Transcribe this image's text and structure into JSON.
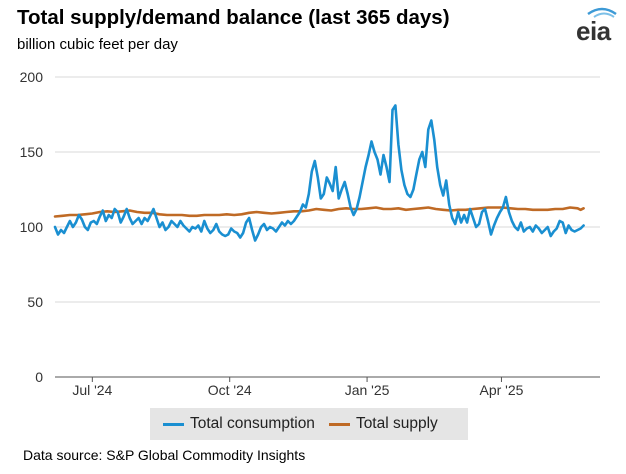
{
  "title": "Total supply/demand balance (last 365 days)",
  "subtitle": "billion cubic feet per day",
  "logo": {
    "text": "eia"
  },
  "source": "Data source: S&P Global Commodity Insights",
  "colors": {
    "consumption": "#1a8fd1",
    "supply": "#bf6a25",
    "grid": "#d9d9d9",
    "axis": "#555555",
    "legend_bg": "#e5e5e5"
  },
  "chart_data": {
    "type": "line",
    "title": "Total supply/demand balance (last 365 days)",
    "ylabel": "billion cubic feet per day",
    "xlabel": "",
    "ylim": [
      0,
      200
    ],
    "yticks": [
      0,
      50,
      100,
      150,
      200
    ],
    "xlim_days": [
      0,
      365
    ],
    "xticks": [
      {
        "label": "Jul '24",
        "day": 25
      },
      {
        "label": "Oct '24",
        "day": 117
      },
      {
        "label": "Jan '25",
        "day": 209
      },
      {
        "label": "Apr '25",
        "day": 299
      }
    ],
    "grid": true,
    "legend_position": "bottom",
    "series": [
      {
        "name": "Total consumption",
        "color": "#1a8fd1",
        "points": [
          [
            0,
            100
          ],
          [
            2,
            95
          ],
          [
            4,
            98
          ],
          [
            6,
            96
          ],
          [
            8,
            100
          ],
          [
            10,
            104
          ],
          [
            12,
            100
          ],
          [
            14,
            103
          ],
          [
            16,
            108
          ],
          [
            18,
            105
          ],
          [
            20,
            100
          ],
          [
            22,
            98
          ],
          [
            24,
            103
          ],
          [
            26,
            104
          ],
          [
            28,
            102
          ],
          [
            30,
            107
          ],
          [
            32,
            111
          ],
          [
            34,
            104
          ],
          [
            36,
            108
          ],
          [
            38,
            106
          ],
          [
            40,
            112
          ],
          [
            42,
            110
          ],
          [
            44,
            103
          ],
          [
            46,
            107
          ],
          [
            48,
            112
          ],
          [
            50,
            106
          ],
          [
            52,
            102
          ],
          [
            54,
            104
          ],
          [
            56,
            106
          ],
          [
            58,
            102
          ],
          [
            60,
            106
          ],
          [
            62,
            104
          ],
          [
            64,
            108
          ],
          [
            66,
            112
          ],
          [
            68,
            106
          ],
          [
            70,
            100
          ],
          [
            72,
            103
          ],
          [
            74,
            98
          ],
          [
            76,
            100
          ],
          [
            78,
            104
          ],
          [
            80,
            102
          ],
          [
            82,
            100
          ],
          [
            84,
            104
          ],
          [
            86,
            101
          ],
          [
            88,
            99
          ],
          [
            90,
            97
          ],
          [
            92,
            100
          ],
          [
            94,
            99
          ],
          [
            96,
            101
          ],
          [
            98,
            97
          ],
          [
            100,
            104
          ],
          [
            102,
            99
          ],
          [
            104,
            96
          ],
          [
            106,
            98
          ],
          [
            108,
            102
          ],
          [
            110,
            97
          ],
          [
            112,
            95
          ],
          [
            114,
            94
          ],
          [
            116,
            95
          ],
          [
            118,
            99
          ],
          [
            120,
            97
          ],
          [
            122,
            96
          ],
          [
            124,
            93
          ],
          [
            126,
            96
          ],
          [
            128,
            103
          ],
          [
            130,
            106
          ],
          [
            132,
            98
          ],
          [
            134,
            91
          ],
          [
            136,
            95
          ],
          [
            138,
            100
          ],
          [
            140,
            102
          ],
          [
            142,
            98
          ],
          [
            144,
            100
          ],
          [
            146,
            99
          ],
          [
            148,
            97
          ],
          [
            150,
            100
          ],
          [
            152,
            103
          ],
          [
            154,
            101
          ],
          [
            156,
            104
          ],
          [
            158,
            102
          ],
          [
            160,
            104
          ],
          [
            162,
            107
          ],
          [
            164,
            110
          ],
          [
            166,
            115
          ],
          [
            168,
            113
          ],
          [
            170,
            122
          ],
          [
            172,
            137
          ],
          [
            174,
            144
          ],
          [
            176,
            133
          ],
          [
            178,
            119
          ],
          [
            180,
            122
          ],
          [
            182,
            133
          ],
          [
            184,
            129
          ],
          [
            186,
            124
          ],
          [
            188,
            140
          ],
          [
            190,
            119
          ],
          [
            192,
            125
          ],
          [
            194,
            130
          ],
          [
            196,
            122
          ],
          [
            198,
            113
          ],
          [
            200,
            108
          ],
          [
            202,
            112
          ],
          [
            204,
            120
          ],
          [
            206,
            130
          ],
          [
            208,
            140
          ],
          [
            210,
            148
          ],
          [
            212,
            157
          ],
          [
            214,
            150
          ],
          [
            216,
            145
          ],
          [
            218,
            135
          ],
          [
            220,
            148
          ],
          [
            222,
            140
          ],
          [
            224,
            130
          ],
          [
            226,
            178
          ],
          [
            228,
            181
          ],
          [
            230,
            155
          ],
          [
            232,
            138
          ],
          [
            234,
            128
          ],
          [
            236,
            122
          ],
          [
            238,
            120
          ],
          [
            240,
            125
          ],
          [
            242,
            135
          ],
          [
            244,
            145
          ],
          [
            246,
            150
          ],
          [
            248,
            140
          ],
          [
            250,
            165
          ],
          [
            252,
            171
          ],
          [
            254,
            158
          ],
          [
            256,
            140
          ],
          [
            258,
            128
          ],
          [
            260,
            121
          ],
          [
            262,
            131
          ],
          [
            264,
            115
          ],
          [
            266,
            106
          ],
          [
            268,
            102
          ],
          [
            270,
            110
          ],
          [
            272,
            103
          ],
          [
            274,
            108
          ],
          [
            276,
            103
          ],
          [
            278,
            112
          ],
          [
            280,
            106
          ],
          [
            282,
            100
          ],
          [
            284,
            102
          ],
          [
            286,
            110
          ],
          [
            288,
            112
          ],
          [
            290,
            104
          ],
          [
            292,
            95
          ],
          [
            294,
            101
          ],
          [
            296,
            106
          ],
          [
            298,
            110
          ],
          [
            300,
            113
          ],
          [
            302,
            120
          ],
          [
            304,
            110
          ],
          [
            306,
            104
          ],
          [
            308,
            100
          ],
          [
            310,
            98
          ],
          [
            312,
            103
          ],
          [
            314,
            97
          ],
          [
            316,
            99
          ],
          [
            318,
            100
          ],
          [
            320,
            97
          ],
          [
            322,
            101
          ],
          [
            324,
            99
          ],
          [
            326,
            96
          ],
          [
            328,
            98
          ],
          [
            330,
            100
          ],
          [
            332,
            94
          ],
          [
            334,
            97
          ],
          [
            336,
            99
          ],
          [
            338,
            104
          ],
          [
            340,
            103
          ],
          [
            342,
            96
          ],
          [
            344,
            101
          ],
          [
            346,
            98
          ],
          [
            348,
            97
          ],
          [
            350,
            98
          ],
          [
            352,
            99
          ],
          [
            354,
            101
          ]
        ]
      },
      {
        "name": "Total supply",
        "color": "#bf6a25",
        "points": [
          [
            0,
            107
          ],
          [
            5,
            107.5
          ],
          [
            10,
            108
          ],
          [
            15,
            108
          ],
          [
            20,
            108.5
          ],
          [
            25,
            109
          ],
          [
            30,
            110
          ],
          [
            35,
            110.5
          ],
          [
            40,
            110
          ],
          [
            45,
            110.5
          ],
          [
            50,
            111
          ],
          [
            55,
            110
          ],
          [
            60,
            109.5
          ],
          [
            65,
            109.5
          ],
          [
            70,
            108.5
          ],
          [
            75,
            108
          ],
          [
            80,
            108
          ],
          [
            85,
            108
          ],
          [
            90,
            107.5
          ],
          [
            95,
            107.5
          ],
          [
            100,
            108
          ],
          [
            105,
            108
          ],
          [
            110,
            108
          ],
          [
            115,
            108.5
          ],
          [
            120,
            108
          ],
          [
            125,
            108.5
          ],
          [
            130,
            109.5
          ],
          [
            135,
            110
          ],
          [
            140,
            109.5
          ],
          [
            145,
            109
          ],
          [
            150,
            109.5
          ],
          [
            155,
            110
          ],
          [
            160,
            110.5
          ],
          [
            165,
            110.5
          ],
          [
            170,
            111
          ],
          [
            175,
            112
          ],
          [
            180,
            111.5
          ],
          [
            185,
            111
          ],
          [
            190,
            112
          ],
          [
            195,
            112.5
          ],
          [
            200,
            112
          ],
          [
            205,
            112
          ],
          [
            210,
            112.5
          ],
          [
            215,
            113
          ],
          [
            220,
            112
          ],
          [
            225,
            112
          ],
          [
            230,
            112.5
          ],
          [
            235,
            111.5
          ],
          [
            240,
            112
          ],
          [
            245,
            112.5
          ],
          [
            250,
            113
          ],
          [
            255,
            112
          ],
          [
            260,
            111.5
          ],
          [
            265,
            111
          ],
          [
            270,
            111.5
          ],
          [
            275,
            111.5
          ],
          [
            280,
            112
          ],
          [
            285,
            112.5
          ],
          [
            290,
            113
          ],
          [
            295,
            113
          ],
          [
            300,
            113
          ],
          [
            305,
            112.5
          ],
          [
            310,
            112
          ],
          [
            315,
            112
          ],
          [
            320,
            111.5
          ],
          [
            325,
            111.5
          ],
          [
            330,
            111.5
          ],
          [
            335,
            112
          ],
          [
            340,
            112
          ],
          [
            345,
            113
          ],
          [
            350,
            112.5
          ],
          [
            352,
            111.5
          ],
          [
            354,
            112.5
          ]
        ]
      }
    ]
  },
  "legend": [
    {
      "label": "Total consumption"
    },
    {
      "label": "Total supply"
    }
  ]
}
